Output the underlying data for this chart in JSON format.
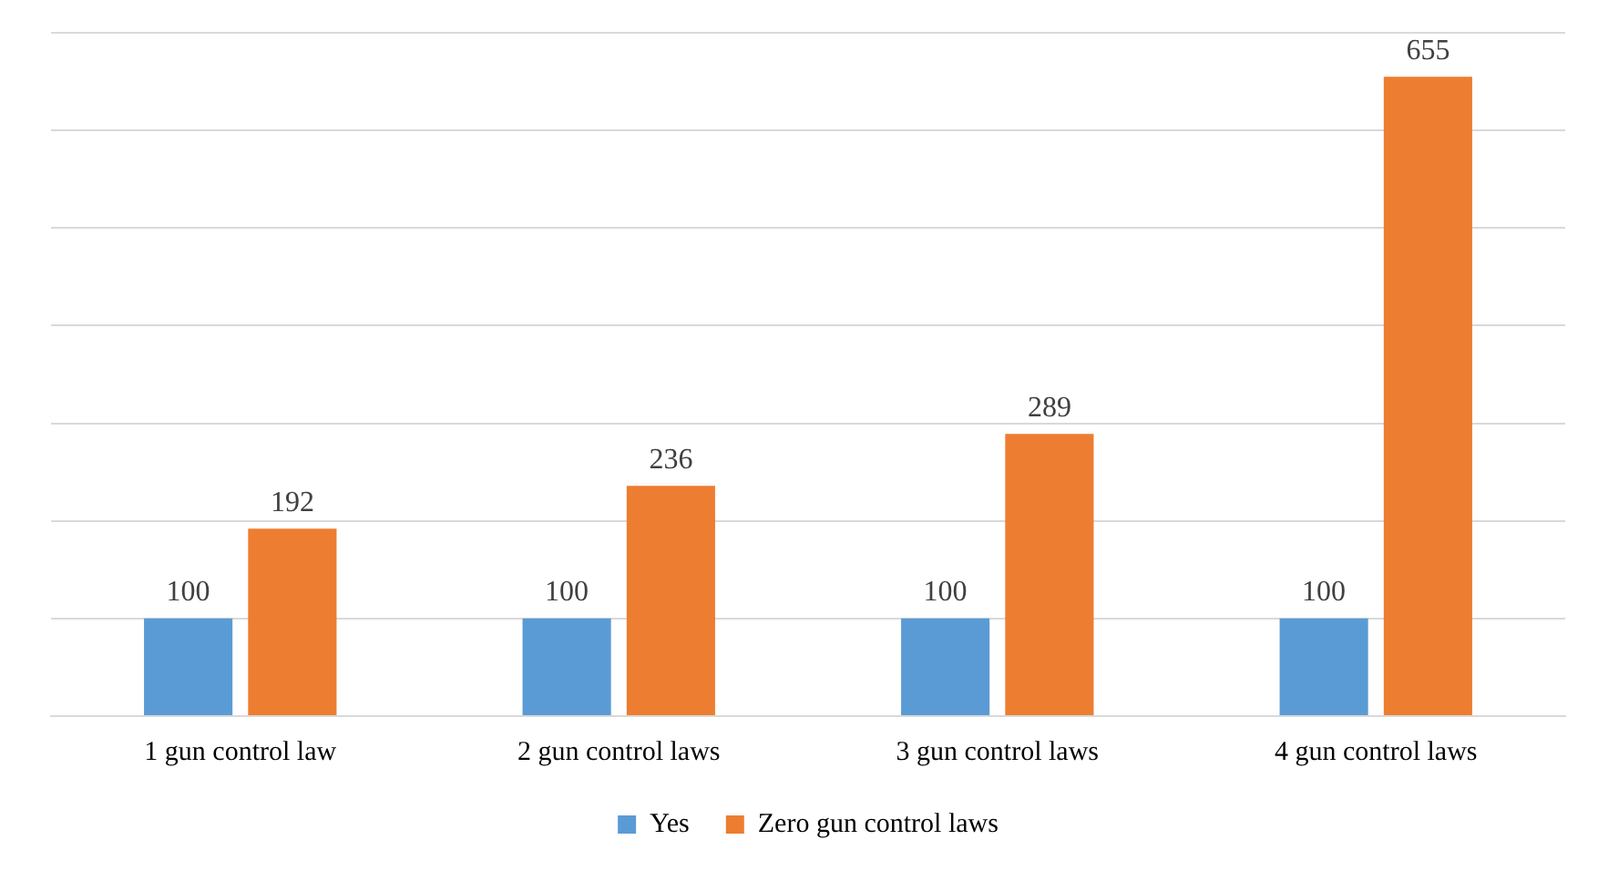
{
  "chart_data": {
    "type": "bar",
    "categories": [
      "1 gun control law",
      "2 gun control laws",
      "3 gun control laws",
      "4 gun control laws"
    ],
    "series": [
      {
        "name": "Yes",
        "color": "#5b9bd5",
        "values": [
          100,
          100,
          100,
          100
        ]
      },
      {
        "name": "Zero gun control laws",
        "color": "#ed7d31",
        "values": [
          192,
          236,
          289,
          655
        ]
      }
    ],
    "ylim": [
      0,
      700
    ],
    "yticks": [
      {
        "value": 0,
        "label": null
      },
      {
        "value": 100,
        "label": null
      },
      {
        "value": 200,
        "label": null
      },
      {
        "value": 300,
        "label": null
      },
      {
        "value": 400,
        "label": null
      },
      {
        "value": 500,
        "label": null
      },
      {
        "value": 600,
        "label": null
      },
      {
        "value": 700,
        "label": null
      }
    ],
    "grid": "y",
    "tick_labels": "x",
    "data_labels": true,
    "legend": "bottom"
  }
}
